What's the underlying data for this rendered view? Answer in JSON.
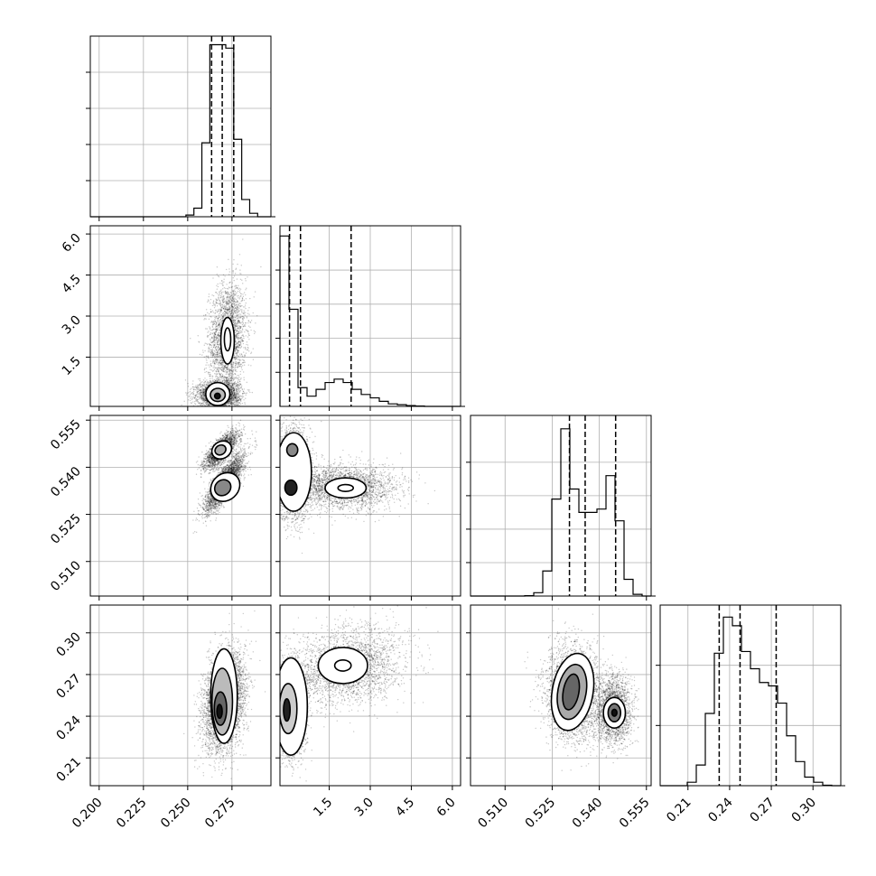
{
  "chart_data": {
    "type": "corner",
    "grid": true,
    "parameters": [
      {
        "range": [
          0.195,
          0.297
        ],
        "ticks": [
          0.2,
          0.225,
          0.25,
          0.275
        ],
        "tick_labels": [
          "0.200",
          "0.225",
          "0.250",
          "0.275"
        ],
        "quantiles": [
          0.2635,
          0.2695,
          0.276
        ],
        "hist": {
          "edges": [
            0.195,
            0.1995,
            0.204,
            0.2085,
            0.213,
            0.2175,
            0.222,
            0.2265,
            0.231,
            0.2355,
            0.24,
            0.2445,
            0.249,
            0.2535,
            0.258,
            0.2625,
            0.267,
            0.2715,
            0.276,
            0.2805,
            0.285,
            0.2895,
            0.294,
            0.297
          ],
          "counts": [
            0,
            0,
            0,
            0,
            0,
            0,
            0,
            0,
            0,
            0,
            0,
            0,
            0.01,
            0.05,
            0.43,
            1.0,
            1.0,
            0.98,
            0.45,
            0.1,
            0.02,
            0,
            0
          ],
          "ymax": 1.05,
          "yticks": [
            0.21,
            0.42,
            0.63,
            0.84
          ]
        }
      },
      {
        "range": [
          -0.3,
          6.3
        ],
        "ticks": [
          1.5,
          3.0,
          4.5,
          6.0
        ],
        "tick_labels": [
          "1.5",
          "3.0",
          "4.5",
          "6.0"
        ],
        "quantiles": [
          0.05,
          0.45,
          2.3
        ],
        "hist": {
          "edges": [
            -0.3,
            0.03,
            0.36,
            0.69,
            1.02,
            1.35,
            1.68,
            2.01,
            2.34,
            2.67,
            3.0,
            3.33,
            3.66,
            3.99,
            4.32,
            4.65,
            4.98,
            5.31,
            5.64,
            5.97,
            6.3
          ],
          "counts": [
            1.0,
            0.57,
            0.11,
            0.06,
            0.1,
            0.14,
            0.16,
            0.14,
            0.1,
            0.07,
            0.05,
            0.03,
            0.015,
            0.01,
            0.005,
            0.002,
            0,
            0,
            0,
            0
          ],
          "ymax": 1.06,
          "yticks": [
            0.2,
            0.4,
            0.6,
            0.8
          ]
        }
      },
      {
        "range": [
          0.499,
          0.5565
        ],
        "ticks": [
          0.51,
          0.525,
          0.54,
          0.555
        ],
        "tick_labels": [
          "0.510",
          "0.525",
          "0.540",
          "0.555"
        ],
        "quantiles": [
          0.5305,
          0.5355,
          0.5452
        ],
        "hist": {
          "edges": [
            0.499,
            0.50188,
            0.50475,
            0.50763,
            0.5105,
            0.51338,
            0.51625,
            0.51913,
            0.522,
            0.52488,
            0.52775,
            0.53063,
            0.5335,
            0.53638,
            0.53925,
            0.54213,
            0.545,
            0.54788,
            0.55075,
            0.55363,
            0.5565
          ],
          "counts": [
            0,
            0,
            0,
            0,
            0,
            0,
            0.002,
            0.02,
            0.15,
            0.58,
            1.0,
            0.64,
            0.5,
            0.5,
            0.52,
            0.72,
            0.45,
            0.1,
            0.01,
            0
          ],
          "ymax": 1.08,
          "yticks": [
            0.2,
            0.4,
            0.6,
            0.8
          ]
        }
      },
      {
        "range": [
          0.19,
          0.32
        ],
        "ticks": [
          0.21,
          0.24,
          0.27,
          0.3
        ],
        "tick_labels": [
          "0.21",
          "0.24",
          "0.27",
          "0.30"
        ],
        "quantiles": [
          0.2325,
          0.2475,
          0.2735
        ],
        "hist": {
          "edges": [
            0.19,
            0.1965,
            0.203,
            0.2095,
            0.216,
            0.2225,
            0.229,
            0.2355,
            0.242,
            0.2485,
            0.255,
            0.2615,
            0.268,
            0.2745,
            0.281,
            0.2875,
            0.294,
            0.3005,
            0.307,
            0.3135,
            0.32
          ],
          "counts": [
            0,
            0,
            0,
            0.02,
            0.12,
            0.42,
            0.77,
            0.98,
            0.93,
            0.78,
            0.68,
            0.6,
            0.58,
            0.48,
            0.29,
            0.14,
            0.05,
            0.02,
            0.003,
            0
          ],
          "ymax": 1.05,
          "yticks": [
            0.35,
            0.7
          ]
        }
      }
    ],
    "pairs": [
      {
        "row": 1,
        "col": 0,
        "clusters": [
          {
            "mx": 0.2725,
            "my": 2.2,
            "sx": 0.0052,
            "sy": 1.0,
            "rho": 0.12,
            "n": 2600
          },
          {
            "mx": 0.2675,
            "my": 0.12,
            "sx": 0.0058,
            "sy": 0.25,
            "rho": 0.0,
            "n": 3000
          }
        ],
        "contours": [
          {
            "cx": 0.2725,
            "cy": 2.1,
            "rx": 0.0038,
            "ry": 0.85,
            "fill": "#ffffff"
          },
          {
            "cx": 0.2725,
            "cy": 2.15,
            "rx": 0.0018,
            "ry": 0.42,
            "fill": "#ffffff"
          },
          {
            "cx": 0.267,
            "cy": 0.15,
            "rx": 0.0068,
            "ry": 0.42,
            "fill": "#ffffff"
          },
          {
            "cx": 0.267,
            "cy": 0.12,
            "rx": 0.0042,
            "ry": 0.24,
            "fill": "#bbbbbb"
          },
          {
            "cx": 0.2668,
            "cy": 0.08,
            "rx": 0.0016,
            "ry": 0.1,
            "fill": "#111111"
          }
        ]
      },
      {
        "row": 2,
        "col": 0,
        "clusters": [
          {
            "mx": 0.271,
            "my": 0.535,
            "sx": 0.0055,
            "sy": 0.0045,
            "rho": 0.82,
            "n": 3000
          },
          {
            "mx": 0.269,
            "my": 0.5455,
            "sx": 0.0045,
            "sy": 0.0028,
            "rho": 0.75,
            "n": 2200
          }
        ],
        "contours": [
          {
            "cx": 0.2712,
            "cy": 0.5337,
            "rx": 0.0088,
            "ry": 0.0042,
            "rot": -42,
            "fill": "#ffffff"
          },
          {
            "cx": 0.2698,
            "cy": 0.5335,
            "rx": 0.0048,
            "ry": 0.0024,
            "rot": -42,
            "fill": "#888888"
          },
          {
            "cx": 0.2692,
            "cy": 0.5455,
            "rx": 0.0058,
            "ry": 0.0027,
            "rot": -30,
            "fill": "#ffffff"
          },
          {
            "cx": 0.2685,
            "cy": 0.5455,
            "rx": 0.0032,
            "ry": 0.0015,
            "rot": -30,
            "fill": "#aaaaaa"
          }
        ]
      },
      {
        "row": 2,
        "col": 1,
        "clusters": [
          {
            "mx": 2.0,
            "my": 0.5336,
            "sx": 1.0,
            "sy": 0.0035,
            "rho": 0.0,
            "n": 2600
          },
          {
            "mx": 0.2,
            "my": 0.538,
            "sx": 0.3,
            "sy": 0.007,
            "rho": 0.0,
            "n": 3000
          }
        ],
        "contours": [
          {
            "cx": 2.1,
            "cy": 0.5334,
            "rx": 0.75,
            "ry": 0.0032,
            "fill": "#ffffff"
          },
          {
            "cx": 2.1,
            "cy": 0.5334,
            "rx": 0.28,
            "ry": 0.0011,
            "fill": "#ffffff"
          },
          {
            "cx": 0.2,
            "cy": 0.5385,
            "rx": 0.65,
            "ry": 0.0125,
            "fill": "#ffffff"
          },
          {
            "cx": 0.1,
            "cy": 0.5335,
            "rx": 0.22,
            "ry": 0.0024,
            "fill": "#222222"
          },
          {
            "cx": 0.15,
            "cy": 0.5455,
            "rx": 0.2,
            "ry": 0.002,
            "fill": "#888888"
          }
        ]
      },
      {
        "row": 3,
        "col": 0,
        "clusters": [
          {
            "mx": 0.2705,
            "my": 0.25,
            "sx": 0.0055,
            "sy": 0.017,
            "rho": 0.25,
            "n": 5000
          }
        ],
        "contours": [
          {
            "cx": 0.2705,
            "cy": 0.2545,
            "rx": 0.0075,
            "ry": 0.034,
            "fill": "#ffffff"
          },
          {
            "cx": 0.2695,
            "cy": 0.2505,
            "rx": 0.0058,
            "ry": 0.024,
            "fill": "#bbbbbb"
          },
          {
            "cx": 0.2685,
            "cy": 0.2455,
            "rx": 0.0035,
            "ry": 0.012,
            "fill": "#666666"
          },
          {
            "cx": 0.268,
            "cy": 0.2435,
            "rx": 0.0015,
            "ry": 0.005,
            "fill": "#111111"
          }
        ]
      },
      {
        "row": 3,
        "col": 1,
        "clusters": [
          {
            "mx": 2.2,
            "my": 0.276,
            "sx": 1.0,
            "sy": 0.014,
            "rho": 0.2,
            "n": 2600
          },
          {
            "mx": 0.15,
            "my": 0.245,
            "sx": 0.25,
            "sy": 0.016,
            "rho": 0.0,
            "n": 3000
          }
        ],
        "contours": [
          {
            "cx": 2.0,
            "cy": 0.2765,
            "rx": 0.9,
            "ry": 0.013,
            "fill": "#ffffff"
          },
          {
            "cx": 2.0,
            "cy": 0.2765,
            "rx": 0.3,
            "ry": 0.004,
            "fill": "#ffffff"
          },
          {
            "cx": 0.1,
            "cy": 0.247,
            "rx": 0.6,
            "ry": 0.035,
            "fill": "#ffffff"
          },
          {
            "cx": 0.0,
            "cy": 0.2455,
            "rx": 0.32,
            "ry": 0.018,
            "fill": "#cccccc"
          },
          {
            "cx": -0.05,
            "cy": 0.2445,
            "rx": 0.12,
            "ry": 0.008,
            "fill": "#222222"
          }
        ]
      },
      {
        "row": 3,
        "col": 2,
        "clusters": [
          {
            "mx": 0.5315,
            "my": 0.257,
            "sx": 0.0042,
            "sy": 0.017,
            "rho": -0.1,
            "n": 3000
          },
          {
            "mx": 0.5445,
            "my": 0.245,
            "sx": 0.0028,
            "sy": 0.012,
            "rho": 0.0,
            "n": 2200
          }
        ],
        "contours": [
          {
            "cx": 0.5315,
            "cy": 0.2575,
            "rx": 0.0065,
            "ry": 0.028,
            "rot": 10,
            "fill": "#ffffff"
          },
          {
            "cx": 0.5313,
            "cy": 0.2575,
            "rx": 0.0045,
            "ry": 0.02,
            "rot": 10,
            "fill": "#aaaaaa"
          },
          {
            "cx": 0.531,
            "cy": 0.2575,
            "rx": 0.0025,
            "ry": 0.013,
            "rot": 10,
            "fill": "#666666"
          },
          {
            "cx": 0.5448,
            "cy": 0.2425,
            "rx": 0.0035,
            "ry": 0.011,
            "fill": "#ffffff"
          },
          {
            "cx": 0.5448,
            "cy": 0.2425,
            "rx": 0.002,
            "ry": 0.0065,
            "fill": "#777777"
          },
          {
            "cx": 0.5448,
            "cy": 0.2425,
            "rx": 0.0008,
            "ry": 0.0025,
            "fill": "#111111"
          }
        ]
      }
    ]
  }
}
